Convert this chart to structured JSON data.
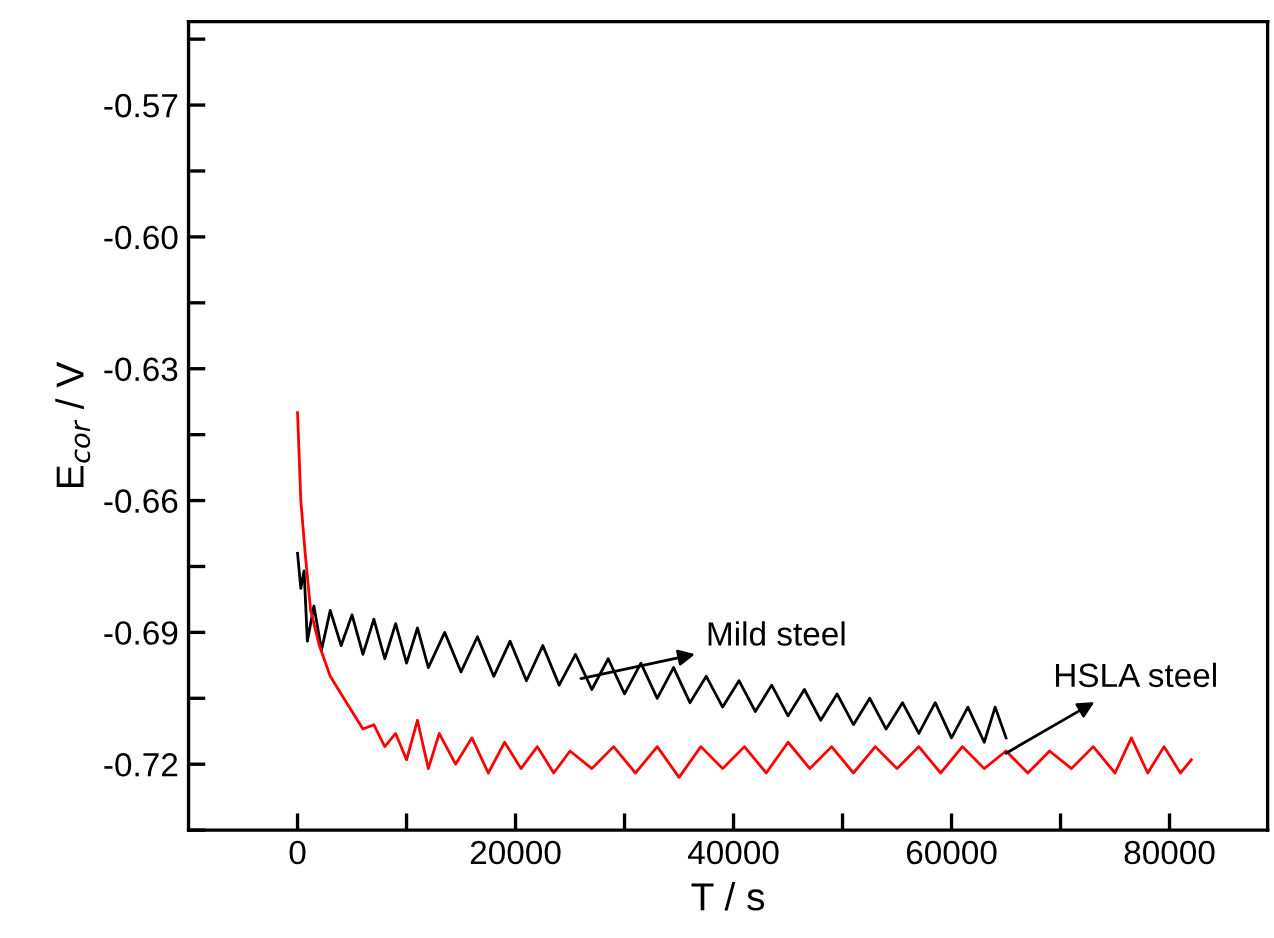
{
  "chart_data": {
    "type": "line",
    "xlabel": "T / s",
    "ylabel": "E$_{cor}$ / V",
    "xlim": [
      -10000,
      89000
    ],
    "ylim": [
      -0.735,
      -0.551
    ],
    "xticks": [
      0,
      {
        "value": 10000,
        "label": null
      },
      20000,
      {
        "value": 30000,
        "label": null
      },
      40000,
      {
        "value": 50000,
        "label": null
      },
      60000,
      {
        "value": 70000,
        "label": null
      },
      80000
    ],
    "yticks": [
      {
        "value": -0.735,
        "label": null
      },
      {
        "value": -0.72,
        "label": "-0.72"
      },
      {
        "value": -0.705,
        "label": null
      },
      {
        "value": -0.69,
        "label": "-0.69"
      },
      {
        "value": -0.675,
        "label": null
      },
      {
        "value": -0.66,
        "label": "-0.66"
      },
      {
        "value": -0.645,
        "label": null
      },
      {
        "value": -0.63,
        "label": "-0.63"
      },
      {
        "value": -0.615,
        "label": null
      },
      {
        "value": -0.6,
        "label": "-0.60"
      },
      {
        "value": -0.585,
        "label": null
      },
      {
        "value": -0.57,
        "label": "-0.57"
      },
      {
        "value": -0.555,
        "label": null
      }
    ],
    "grid": false,
    "legend": false,
    "series": [
      {
        "color": "#000000",
        "x": [
          0,
          300,
          600,
          900,
          1500,
          2200,
          3000,
          4000,
          5000,
          6000,
          7000,
          8000,
          9000,
          10000,
          11000,
          12000,
          13500,
          15000,
          16500,
          18000,
          19500,
          21000,
          22500,
          24000,
          25500,
          27000,
          28500,
          30000,
          31500,
          33000,
          34500,
          36000,
          37500,
          39000,
          40500,
          42000,
          43500,
          45000,
          46500,
          48000,
          49500,
          51000,
          52500,
          54000,
          55500,
          57000,
          58500,
          60000,
          61500,
          63000,
          64000,
          65000
        ],
        "values": [
          -0.672,
          -0.68,
          -0.676,
          -0.692,
          -0.684,
          -0.694,
          -0.685,
          -0.693,
          -0.686,
          -0.695,
          -0.687,
          -0.696,
          -0.688,
          -0.697,
          -0.689,
          -0.698,
          -0.69,
          -0.699,
          -0.691,
          -0.7,
          -0.692,
          -0.701,
          -0.693,
          -0.702,
          -0.695,
          -0.703,
          -0.696,
          -0.704,
          -0.697,
          -0.705,
          -0.698,
          -0.706,
          -0.7,
          -0.707,
          -0.701,
          -0.708,
          -0.702,
          -0.709,
          -0.703,
          -0.71,
          -0.704,
          -0.711,
          -0.705,
          -0.712,
          -0.706,
          -0.713,
          -0.706,
          -0.714,
          -0.707,
          -0.715,
          -0.707,
          -0.714
        ]
      },
      {
        "color": "#ff0000",
        "x": [
          0,
          300,
          700,
          1200,
          2000,
          3000,
          4000,
          5000,
          6000,
          7000,
          8000,
          9000,
          10000,
          11000,
          12000,
          13000,
          14500,
          16000,
          17500,
          19000,
          20500,
          22000,
          23500,
          25000,
          27000,
          29000,
          31000,
          33000,
          35000,
          37000,
          39000,
          41000,
          43000,
          45000,
          47000,
          49000,
          51000,
          53000,
          55000,
          57000,
          59000,
          61000,
          63000,
          65000,
          67000,
          69000,
          71000,
          73000,
          75000,
          76500,
          78000,
          79500,
          81000,
          82000
        ],
        "values": [
          -0.64,
          -0.66,
          -0.672,
          -0.685,
          -0.693,
          -0.7,
          -0.704,
          -0.708,
          -0.712,
          -0.711,
          -0.716,
          -0.713,
          -0.719,
          -0.71,
          -0.721,
          -0.713,
          -0.72,
          -0.714,
          -0.722,
          -0.715,
          -0.721,
          -0.716,
          -0.722,
          -0.717,
          -0.721,
          -0.716,
          -0.722,
          -0.716,
          -0.723,
          -0.716,
          -0.721,
          -0.716,
          -0.722,
          -0.715,
          -0.721,
          -0.716,
          -0.722,
          -0.716,
          -0.721,
          -0.716,
          -0.722,
          -0.716,
          -0.721,
          -0.717,
          -0.722,
          -0.717,
          -0.721,
          -0.716,
          -0.722,
          -0.714,
          -0.722,
          -0.716,
          -0.722,
          -0.719
        ]
      }
    ],
    "annotations": [
      {
        "text": "Mild steel",
        "x": 26000,
        "y": -0.7005
      },
      {
        "text": "HSLA steel",
        "x": 65000,
        "y": -0.7175
      }
    ]
  }
}
